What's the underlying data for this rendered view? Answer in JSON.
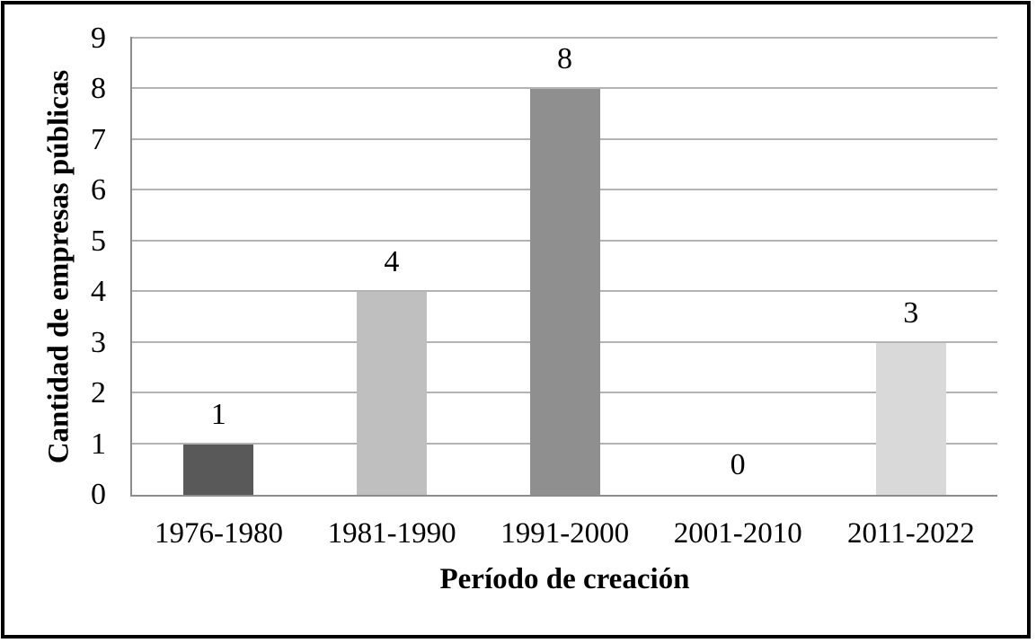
{
  "chart_data": {
    "type": "bar",
    "title": "",
    "categories": [
      "1976-1980",
      "1981-1990",
      "1991-2000",
      "2001-2010",
      "2011-2022"
    ],
    "values": [
      1,
      4,
      8,
      0,
      3
    ],
    "data_labels": [
      "1",
      "4",
      "8",
      "0",
      "3"
    ],
    "xlabel": "Período de creación",
    "ylabel": "Cantidad de empresas públicas",
    "ylim": [
      0,
      9
    ],
    "yticks": [
      0,
      1,
      2,
      3,
      4,
      5,
      6,
      7,
      8,
      9
    ],
    "grid": "horizontal",
    "legend": "none",
    "bar_colors": [
      "#595959",
      "#bfbfbf",
      "#8f8f8f",
      null,
      "#d9d9d9"
    ],
    "colors": {
      "gridline": "#b3b3b3",
      "axis_line": "#8c8c8c",
      "text": "#000000",
      "frame_border": "#000000",
      "background": "#ffffff"
    }
  }
}
